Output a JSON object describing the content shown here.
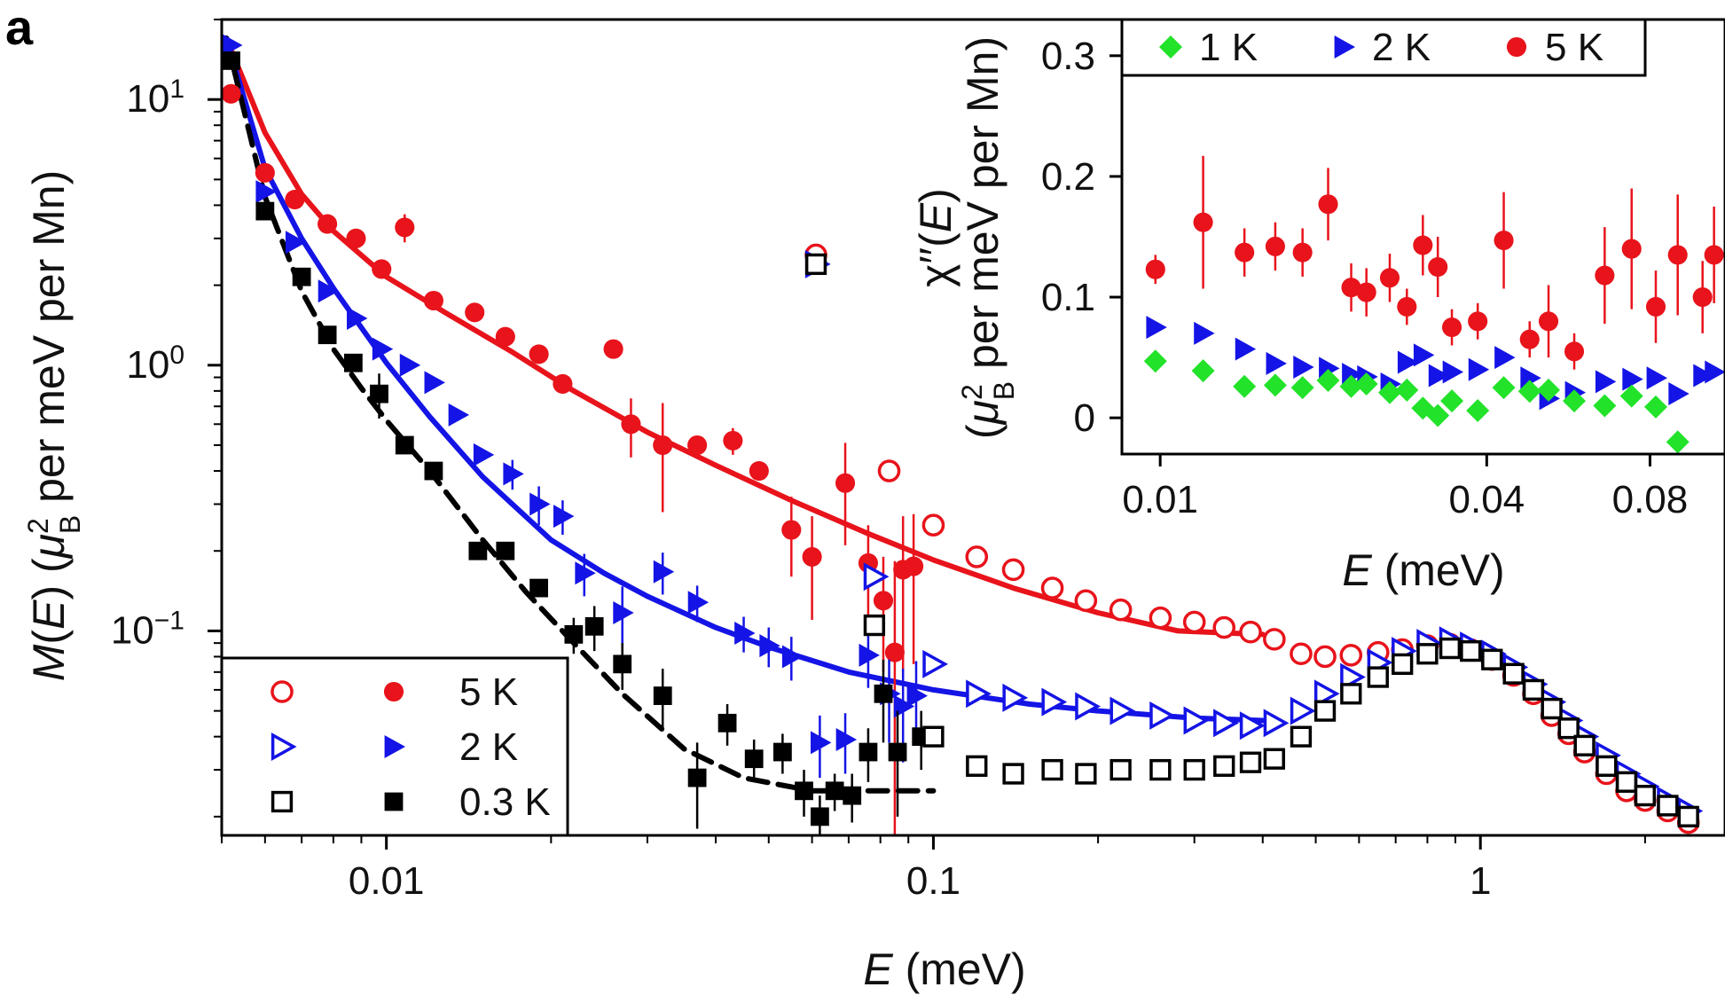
{
  "panel_label": "a",
  "colors": {
    "red": "#e8131b",
    "blue": "#1414e6",
    "black": "#000000",
    "green": "#22e22a"
  },
  "chart_data": [
    {
      "type": "scatter",
      "name": "main",
      "xscale": "log",
      "yscale": "log",
      "xlim": [
        0.005,
        2.8
      ],
      "ylim": [
        0.017,
        20
      ],
      "xlabel_italic": "E",
      "xlabel_rest": " (meV)",
      "ylabel": "M(E) (μ²B per meV per Mn)",
      "ylabel_parts": {
        "italic": "M",
        "a": "(",
        "b": "E",
        "c": ") (",
        "mu": "μ",
        "sup": "2",
        "sub": "B",
        "d": " per meV per Mn)"
      },
      "xticks": [
        {
          "value": 0.01,
          "label": "0.01"
        },
        {
          "value": 0.1,
          "label": "0.1"
        },
        {
          "value": 1,
          "label": "1"
        }
      ],
      "yticks": [
        {
          "value": 10,
          "base": "10",
          "exp": "1"
        },
        {
          "value": 1,
          "base": "10",
          "exp": "0"
        },
        {
          "value": 0.1,
          "base": "10",
          "exp": "−1"
        }
      ],
      "legend": {
        "placement": "bottom-left",
        "entries": [
          {
            "label": "5 K",
            "color": "#e8131b",
            "open": "circle-open",
            "filled": "circle"
          },
          {
            "label": "2 K",
            "color": "#1414e6",
            "open": "triangle-open",
            "filled": "triangle"
          },
          {
            "label": "0.3 K",
            "color": "#000000",
            "open": "square-open",
            "filled": "square"
          }
        ]
      },
      "series": [
        {
          "name": "5 K fit",
          "kind": "line",
          "color": "#e8131b",
          "dash": false,
          "x": [
            0.0051,
            0.006,
            0.007,
            0.008,
            0.01,
            0.013,
            0.017,
            0.022,
            0.03,
            0.04,
            0.055,
            0.075,
            0.1,
            0.14,
            0.2,
            0.28,
            0.4
          ],
          "y": [
            17,
            7.5,
            4.4,
            3.2,
            2.15,
            1.55,
            1.12,
            0.8,
            0.56,
            0.42,
            0.31,
            0.235,
            0.185,
            0.145,
            0.117,
            0.1,
            0.097
          ]
        },
        {
          "name": "2 K fit",
          "kind": "line",
          "color": "#1414e6",
          "dash": false,
          "x": [
            0.0051,
            0.006,
            0.007,
            0.008,
            0.01,
            0.012,
            0.015,
            0.02,
            0.025,
            0.03,
            0.04,
            0.05,
            0.07,
            0.1,
            0.15,
            0.2,
            0.3,
            0.4
          ],
          "y": [
            17,
            5.5,
            3.0,
            1.95,
            1.02,
            0.64,
            0.38,
            0.22,
            0.165,
            0.135,
            0.103,
            0.087,
            0.07,
            0.06,
            0.053,
            0.05,
            0.047,
            0.046
          ]
        },
        {
          "name": "0.3 K fit",
          "kind": "line",
          "color": "#000000",
          "dash": true,
          "x": [
            0.0051,
            0.006,
            0.007,
            0.008,
            0.009,
            0.01,
            0.012,
            0.015,
            0.018,
            0.022,
            0.027,
            0.035,
            0.045,
            0.06,
            0.08,
            0.1
          ],
          "y": [
            17,
            4.3,
            1.9,
            1.15,
            0.82,
            0.62,
            0.4,
            0.22,
            0.14,
            0.09,
            0.058,
            0.036,
            0.028,
            0.025,
            0.025,
            0.025
          ]
        },
        {
          "name": "5 K filled",
          "kind": "points",
          "marker": "circle",
          "filled": true,
          "color": "#e8131b",
          "x": [
            0.0052,
            0.006,
            0.0068,
            0.0078,
            0.0088,
            0.0098,
            0.0108,
            0.0122,
            0.0145,
            0.0165,
            0.019,
            0.021,
            0.026,
            0.028,
            0.032,
            0.037,
            0.043,
            0.048,
            0.055,
            0.06,
            0.069,
            0.076,
            0.081,
            0.085,
            0.088,
            0.092
          ],
          "y": [
            10.5,
            5.3,
            4.2,
            3.4,
            3.0,
            2.3,
            3.3,
            1.75,
            1.58,
            1.28,
            1.1,
            0.85,
            1.15,
            0.6,
            0.5,
            0.5,
            0.52,
            0.4,
            0.24,
            0.19,
            0.36,
            0.18,
            0.13,
            0.083,
            0.17,
            0.175
          ],
          "err": [
            0,
            0,
            0,
            0,
            0,
            0,
            0.4,
            0,
            0,
            0,
            0,
            0,
            0,
            0.15,
            0.22,
            0,
            0.06,
            0,
            0.08,
            0.08,
            0.15,
            0.07,
            0.06,
            0.1,
            0.1,
            0.1
          ]
        },
        {
          "name": "5 K open",
          "kind": "points",
          "marker": "circle",
          "filled": false,
          "color": "#e8131b",
          "x": [
            0.061,
            0.083,
            0.1,
            0.12,
            0.14,
            0.165,
            0.19,
            0.22,
            0.26,
            0.3,
            0.34,
            0.38,
            0.42,
            0.47,
            0.52,
            0.58,
            0.65,
            0.72,
            0.8,
            0.88,
            0.96,
            1.05,
            1.15,
            1.25,
            1.35,
            1.45,
            1.55,
            1.7,
            1.85,
            2.0,
            2.2,
            2.4
          ],
          "y": [
            2.6,
            0.4,
            0.25,
            0.19,
            0.17,
            0.145,
            0.13,
            0.12,
            0.112,
            0.108,
            0.103,
            0.099,
            0.093,
            0.082,
            0.08,
            0.081,
            0.083,
            0.085,
            0.088,
            0.089,
            0.085,
            0.078,
            0.068,
            0.058,
            0.048,
            0.041,
            0.035,
            0.029,
            0.025,
            0.023,
            0.021,
            0.019
          ]
        },
        {
          "name": "2 K filled",
          "kind": "points",
          "marker": "triangle",
          "filled": true,
          "color": "#1414e6",
          "x": [
            0.0052,
            0.006,
            0.0068,
            0.0078,
            0.0088,
            0.0098,
            0.011,
            0.0122,
            0.0135,
            0.015,
            0.017,
            0.019,
            0.021,
            0.023,
            0.027,
            0.032,
            0.037,
            0.045,
            0.05,
            0.055,
            0.062,
            0.069,
            0.076,
            0.083,
            0.088,
            0.093
          ],
          "y": [
            16,
            4.5,
            2.9,
            1.9,
            1.5,
            1.15,
            1.0,
            0.86,
            0.65,
            0.46,
            0.39,
            0.3,
            0.27,
            0.165,
            0.117,
            0.167,
            0.128,
            0.098,
            0.088,
            0.08,
            0.038,
            0.039,
            0.081,
            0.058,
            0.052,
            0.057
          ],
          "err": [
            0,
            0,
            0,
            0,
            0,
            0,
            0,
            0,
            0,
            0,
            0.05,
            0.05,
            0.04,
            0.03,
            0.03,
            0.03,
            0.02,
            0.015,
            0.015,
            0.015,
            0.01,
            0.01,
            0.02,
            0.02,
            0.02,
            0.02
          ]
        },
        {
          "name": "2 K open",
          "kind": "points",
          "marker": "triangle",
          "filled": false,
          "color": "#1414e6",
          "x": [
            0.061,
            0.078,
            0.1,
            0.12,
            0.14,
            0.165,
            0.19,
            0.22,
            0.26,
            0.3,
            0.34,
            0.38,
            0.42,
            0.47,
            0.52,
            0.58,
            0.65,
            0.72,
            0.8,
            0.88,
            0.96,
            1.05,
            1.15,
            1.25,
            1.35,
            1.45,
            1.55,
            1.7,
            1.85,
            2.0,
            2.2,
            2.4
          ],
          "y": [
            2.4,
            0.16,
            0.075,
            0.058,
            0.056,
            0.054,
            0.052,
            0.05,
            0.048,
            0.046,
            0.045,
            0.044,
            0.045,
            0.05,
            0.058,
            0.067,
            0.076,
            0.084,
            0.09,
            0.092,
            0.088,
            0.082,
            0.073,
            0.063,
            0.054,
            0.046,
            0.04,
            0.034,
            0.029,
            0.026,
            0.023,
            0.021
          ]
        },
        {
          "name": "0.3 K filled",
          "kind": "points",
          "marker": "square",
          "filled": true,
          "color": "#000000",
          "x": [
            0.0052,
            0.006,
            0.007,
            0.0078,
            0.0087,
            0.0097,
            0.0108,
            0.0122,
            0.0147,
            0.0165,
            0.019,
            0.022,
            0.024,
            0.027,
            0.032,
            0.037,
            0.042,
            0.047,
            0.053,
            0.058,
            0.062,
            0.066,
            0.071,
            0.076,
            0.081,
            0.086,
            0.095
          ],
          "y": [
            14,
            3.8,
            2.15,
            1.3,
            1.02,
            0.78,
            0.5,
            0.4,
            0.2,
            0.2,
            0.145,
            0.097,
            0.104,
            0.075,
            0.057,
            0.028,
            0.045,
            0.033,
            0.035,
            0.025,
            0.02,
            0.025,
            0.024,
            0.035,
            0.058,
            0.035,
            0.04
          ],
          "err": [
            0,
            0,
            0,
            0,
            0,
            0.15,
            0,
            0,
            0.015,
            0,
            0,
            0.015,
            0.02,
            0.015,
            0.015,
            0.01,
            0.008,
            0.006,
            0.006,
            0.005,
            0.004,
            0.004,
            0.005,
            0.008,
            0.02,
            0.015,
            0.01
          ]
        },
        {
          "name": "0.3 K open",
          "kind": "points",
          "marker": "square",
          "filled": false,
          "color": "#000000",
          "x": [
            0.061,
            0.078,
            0.1,
            0.12,
            0.14,
            0.165,
            0.19,
            0.22,
            0.26,
            0.3,
            0.34,
            0.38,
            0.42,
            0.47,
            0.52,
            0.58,
            0.65,
            0.72,
            0.8,
            0.88,
            0.96,
            1.05,
            1.15,
            1.25,
            1.35,
            1.45,
            1.55,
            1.7,
            1.85,
            2.0,
            2.2,
            2.4
          ],
          "y": [
            2.4,
            0.105,
            0.04,
            0.031,
            0.029,
            0.03,
            0.029,
            0.03,
            0.03,
            0.03,
            0.031,
            0.032,
            0.033,
            0.04,
            0.05,
            0.058,
            0.067,
            0.075,
            0.082,
            0.086,
            0.084,
            0.078,
            0.069,
            0.06,
            0.051,
            0.043,
            0.037,
            0.031,
            0.027,
            0.024,
            0.022,
            0.02
          ]
        }
      ]
    },
    {
      "type": "scatter",
      "name": "inset",
      "xscale": "log",
      "yscale": "linear",
      "xlim": [
        0.0085,
        0.11
      ],
      "ylim": [
        -0.03,
        0.33
      ],
      "xlabel_italic": "E",
      "xlabel_rest": " (meV)",
      "ylabel_line1": "χ′′(E)",
      "ylabel_line2": "(μ²B per meV per Mn)",
      "ylabel_parts": {
        "chi": "χ′′(",
        "E": "E",
        "close": ")",
        "open": "(",
        "mu": "μ",
        "sup": "2",
        "sub": "B",
        "rest": " per meV per Mn)"
      },
      "xticks": [
        {
          "value": 0.01,
          "label": "0.01"
        },
        {
          "value": 0.04,
          "label": "0.04"
        },
        {
          "value": 0.08,
          "label": "0.08"
        }
      ],
      "yticks": [
        {
          "value": 0,
          "label": "0"
        },
        {
          "value": 0.1,
          "label": "0.1"
        },
        {
          "value": 0.2,
          "label": "0.2"
        },
        {
          "value": 0.3,
          "label": "0.3"
        }
      ],
      "legend": {
        "placement": "top",
        "entries": [
          {
            "label": "1 K",
            "color": "#22e22a",
            "marker": "diamond"
          },
          {
            "label": "2 K",
            "color": "#1414e6",
            "marker": "triangle"
          },
          {
            "label": "5 K",
            "color": "#e8131b",
            "marker": "circle"
          }
        ]
      },
      "series": [
        {
          "name": "5 K",
          "marker": "circle",
          "color": "#e8131b",
          "x": [
            0.0098,
            0.012,
            0.0143,
            0.0163,
            0.0183,
            0.0204,
            0.0225,
            0.024,
            0.0265,
            0.0285,
            0.0305,
            0.0325,
            0.0345,
            0.0385,
            0.043,
            0.048,
            0.052,
            0.058,
            0.066,
            0.074,
            0.082,
            0.09,
            0.1,
            0.105
          ],
          "y": [
            0.123,
            0.162,
            0.137,
            0.142,
            0.137,
            0.177,
            0.108,
            0.104,
            0.116,
            0.092,
            0.143,
            0.125,
            0.075,
            0.08,
            0.147,
            0.065,
            0.08,
            0.055,
            0.118,
            0.14,
            0.092,
            0.135,
            0.1,
            0.135
          ],
          "err": [
            0.012,
            0.055,
            0.02,
            0.02,
            0.02,
            0.03,
            0.02,
            0.02,
            0.02,
            0.015,
            0.025,
            0.025,
            0.015,
            0.015,
            0.04,
            0.015,
            0.03,
            0.015,
            0.04,
            0.05,
            0.03,
            0.05,
            0.03,
            0.04
          ]
        },
        {
          "name": "2 K",
          "marker": "triangle",
          "color": "#1414e6",
          "x": [
            0.0098,
            0.012,
            0.0143,
            0.0163,
            0.0183,
            0.0204,
            0.0225,
            0.024,
            0.0265,
            0.0285,
            0.0305,
            0.0325,
            0.0345,
            0.0385,
            0.043,
            0.048,
            0.052,
            0.058,
            0.066,
            0.074,
            0.082,
            0.09,
            0.1,
            0.105
          ],
          "y": [
            0.075,
            0.07,
            0.057,
            0.045,
            0.042,
            0.041,
            0.036,
            0.034,
            0.028,
            0.046,
            0.052,
            0.035,
            0.038,
            0.04,
            0.05,
            0.033,
            0.016,
            0.021,
            0.03,
            0.032,
            0.033,
            0.02,
            0.035,
            0.038
          ]
        },
        {
          "name": "1 K",
          "marker": "diamond",
          "color": "#22e22a",
          "x": [
            0.0098,
            0.012,
            0.0143,
            0.0163,
            0.0183,
            0.0204,
            0.0225,
            0.024,
            0.0265,
            0.0285,
            0.0305,
            0.0325,
            0.0345,
            0.0385,
            0.043,
            0.048,
            0.052,
            0.058,
            0.066,
            0.074,
            0.082,
            0.09
          ],
          "y": [
            0.047,
            0.039,
            0.026,
            0.027,
            0.025,
            0.031,
            0.026,
            0.028,
            0.021,
            0.023,
            0.008,
            0.002,
            0.014,
            0.006,
            0.025,
            0.022,
            0.023,
            0.014,
            0.01,
            0.018,
            0.009,
            -0.02
          ]
        }
      ]
    }
  ]
}
